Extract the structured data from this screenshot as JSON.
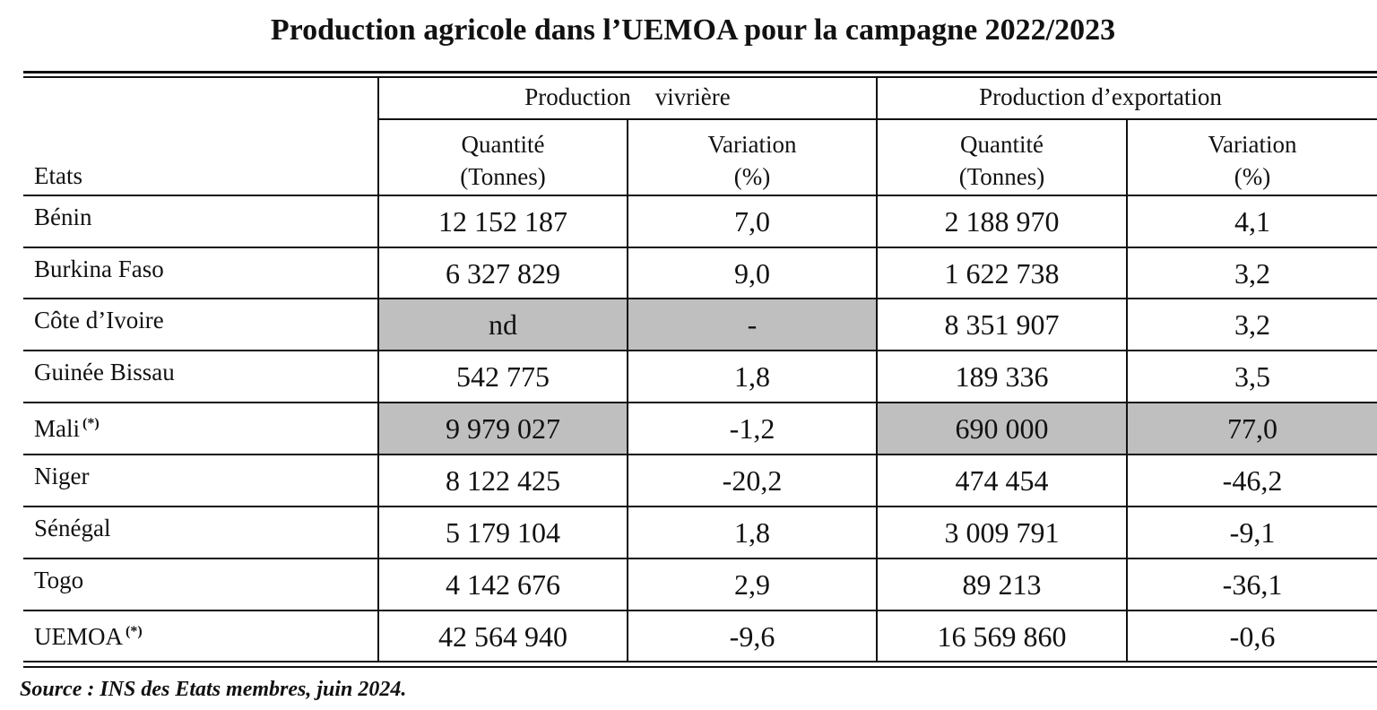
{
  "title": "Production agricole dans l’UEMOA pour la campagne 2022/2023",
  "header": {
    "states_label": "Etats",
    "group_food": "Production    vivrière",
    "group_export": "Production d’exportation",
    "qty_line1": "Quantité",
    "qty_line2": "(Tonnes)",
    "var_line1": "Variation",
    "var_line2": "(%)"
  },
  "rows": [
    {
      "state": "Bénin",
      "star": "",
      "food_qty": "12 152 187",
      "food_var": "7,0",
      "exp_qty": "2 188 970",
      "exp_var": "4,1"
    },
    {
      "state": "Burkina Faso",
      "star": "",
      "food_qty": "6 327 829",
      "food_var": "9,0",
      "exp_qty": "1 622 738",
      "exp_var": "3,2"
    },
    {
      "state": "Côte d’Ivoire",
      "star": "",
      "food_qty": "nd",
      "food_var": "-",
      "exp_qty": "8 351 907",
      "exp_var": "3,2"
    },
    {
      "state": "Guinée  Bissau",
      "star": "",
      "food_qty": "542 775",
      "food_var": "1,8",
      "exp_qty": "189 336",
      "exp_var": "3,5"
    },
    {
      "state": "Mali",
      "star": "(*)",
      "food_qty": "9 979 027",
      "food_var": "-1,2",
      "exp_qty": "690 000",
      "exp_var": "77,0"
    },
    {
      "state": "Niger",
      "star": "",
      "food_qty": "8 122 425",
      "food_var": "-20,2",
      "exp_qty": "474 454",
      "exp_var": "-46,2"
    },
    {
      "state": "Sénégal",
      "star": "",
      "food_qty": "5 179 104",
      "food_var": "1,8",
      "exp_qty": "3 009 791",
      "exp_var": "-9,1"
    },
    {
      "state": "Togo",
      "star": "",
      "food_qty": "4 142 676",
      "food_var": "2,9",
      "exp_qty": "89 213",
      "exp_var": "-36,1"
    },
    {
      "state": "UEMOA",
      "star": "(*)",
      "food_qty": "42 564 940",
      "food_var": "-9,6",
      "exp_qty": "16 569 860",
      "exp_var": "-0,6"
    }
  ],
  "source": "Source : INS des Etats membres, juin 2024.",
  "colors": {
    "shade": "#bfbfbf",
    "line": "#111111"
  }
}
